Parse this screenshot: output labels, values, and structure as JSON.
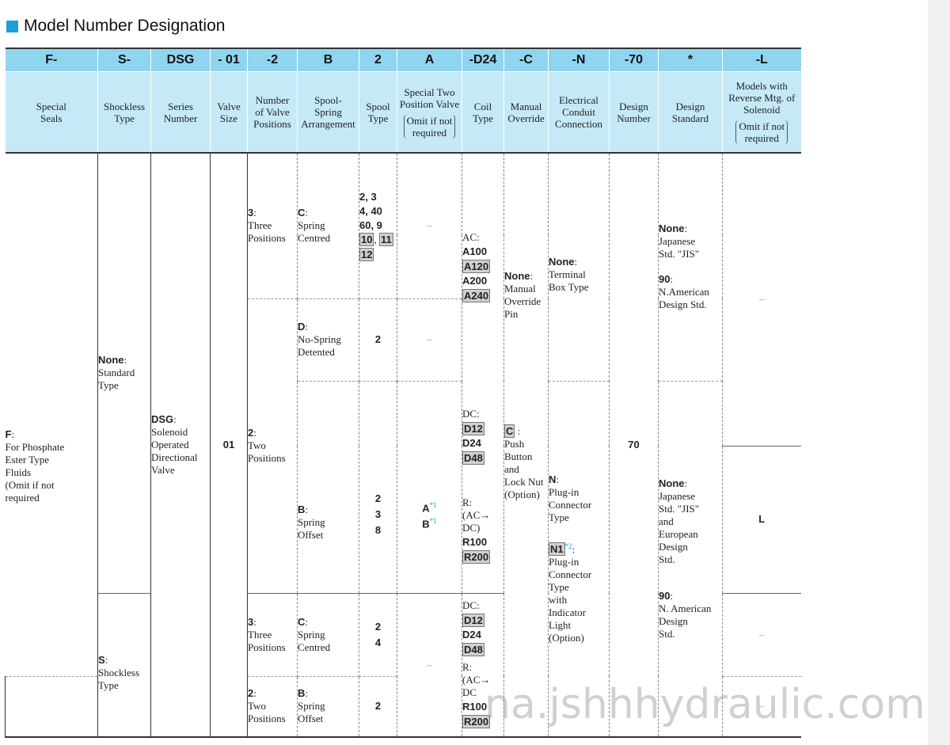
{
  "title": "Model Number Designation",
  "watermark": "na.jshhhydraulic.com",
  "codes": [
    "F-",
    "S-",
    "DSG",
    "- 01",
    "-2",
    "B",
    "2",
    "A",
    "-D24",
    "-C",
    "-N",
    "-70",
    "*",
    "-L"
  ],
  "descriptions": {
    "c0": [
      "Special",
      "Seals"
    ],
    "c1": [
      "Shockless",
      "Type"
    ],
    "c2": [
      "Series",
      "Number"
    ],
    "c3": [
      "Valve",
      "Size"
    ],
    "c4": [
      "Number",
      "of Valve",
      "Positions"
    ],
    "c5": [
      "Spool-",
      "Spring",
      "Arrangement"
    ],
    "c6": [
      "Spool",
      "Type"
    ],
    "c7": [
      "Special Two",
      "Position Valve"
    ],
    "c7_omit": [
      "Omit if not",
      "required"
    ],
    "c8": [
      "Coil",
      "Type"
    ],
    "c9": [
      "Manual",
      "Override"
    ],
    "c10": [
      "Electrical",
      "Conduit",
      "Connection"
    ],
    "c11": [
      "Design",
      "Number"
    ],
    "c12": [
      "Design",
      "Standard"
    ],
    "c13": [
      "Models with",
      "Reverse Mtg. of",
      "Solenoid"
    ],
    "c13_omit": [
      "Omit if not",
      "required"
    ]
  },
  "seals": {
    "code": "F",
    "lines": [
      "For Phosphate",
      "Ester Type",
      "Fluids",
      "(Omit if not",
      "required"
    ]
  },
  "shockless": {
    "none_code": "None",
    "none_lines": [
      "Standard",
      "Type"
    ],
    "s_code": "S",
    "s_lines": [
      "Shockless",
      "Type"
    ]
  },
  "series": {
    "code": "DSG",
    "lines": [
      "Solenoid",
      "Operated",
      "Directional",
      "Valve"
    ]
  },
  "valve_size": "01",
  "positions": {
    "three": {
      "code": "3",
      "lines": [
        "Three",
        "Positions"
      ]
    },
    "two": {
      "code": "2",
      "lines": [
        "Two",
        "Positions"
      ]
    }
  },
  "spring": {
    "c": {
      "code": "C",
      "lines": [
        "Spring",
        "Centred"
      ]
    },
    "d": {
      "code": "D",
      "lines": [
        "No-Spring",
        "Detented"
      ]
    },
    "b": {
      "code": "B",
      "lines": [
        "Spring",
        "Offset"
      ]
    }
  },
  "spool": {
    "r1_plain": [
      "2, 3",
      "4, 40",
      "60, 9"
    ],
    "r1_boxed": [
      "10",
      "11",
      "12"
    ],
    "r2": "2",
    "r3": [
      "2",
      "3",
      "8"
    ],
    "r4": [
      "2",
      "4"
    ],
    "r5": "2"
  },
  "special": {
    "dash": "–",
    "a": "A",
    "b": "B",
    "note": "*1"
  },
  "coil": {
    "ac_label": "AC:",
    "ac": [
      {
        "text": "A100",
        "boxed": false
      },
      {
        "text": "A120",
        "boxed": true
      },
      {
        "text": "A200",
        "boxed": false
      },
      {
        "text": "A240",
        "boxed": true
      }
    ],
    "dc_label": "DC:",
    "dc": [
      {
        "text": "D12",
        "boxed": true
      },
      {
        "text": "D24",
        "boxed": false
      },
      {
        "text": "D48",
        "boxed": true
      }
    ],
    "r_label": "R:",
    "r_conv": [
      "(AC→",
      "DC)"
    ],
    "r": [
      {
        "text": "R100",
        "boxed": false
      },
      {
        "text": "R200",
        "boxed": true
      }
    ],
    "s_dc_label": "DC:",
    "s_r_label": "R:",
    "s_r_conv": [
      "(AC→",
      "DC"
    ]
  },
  "manual": {
    "none_code": "None",
    "none_lines": [
      "Manual",
      "Override",
      "Pin"
    ],
    "c_code": "C",
    "c_lines": [
      "Push",
      "Button",
      "and",
      "Lock Nut",
      "(Option)"
    ]
  },
  "conduit": {
    "none_code": "None",
    "none_lines": [
      "Terminal",
      "Box Type"
    ],
    "n_code": "N",
    "n_lines": [
      "Plug-in",
      "Connector",
      "Type"
    ],
    "n1_code": "N1",
    "n1_note": "*2",
    "n1_lines": [
      "Plug-in",
      "Connector",
      "Type",
      "with",
      "Indicator",
      "Light",
      "(Option)"
    ]
  },
  "design_number": "70",
  "design_std": {
    "a_none": "None",
    "a_none_lines": [
      "Japanese",
      "Std. \"JIS\""
    ],
    "a_90": "90",
    "a_90_lines": [
      "N.American",
      "Design Std."
    ],
    "b_none": "None",
    "b_none_lines": [
      "Japanese",
      "Std. \"JIS\"",
      "and",
      "European",
      "Design",
      "Std."
    ],
    "b_90": "90",
    "b_90_lines": [
      "N. American",
      "Design",
      "Std."
    ]
  },
  "reverse": {
    "dash": "–",
    "l": "L",
    "last": "–"
  }
}
